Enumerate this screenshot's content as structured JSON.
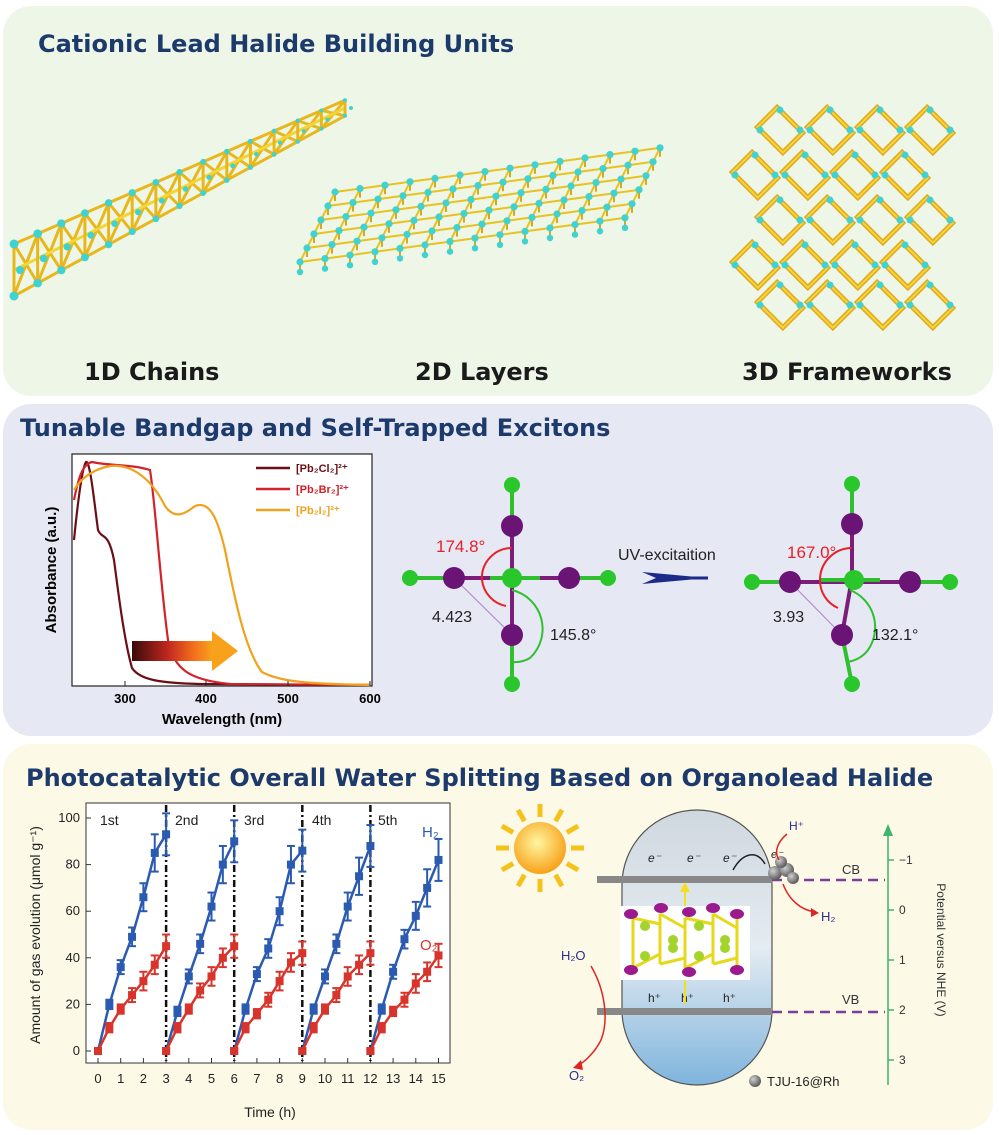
{
  "panel1": {
    "title": "Cationic Lead Halide Building Units",
    "labels": [
      "1D Chains",
      "2D Layers",
      "3D Frameworks"
    ]
  },
  "panel2": {
    "title": "Tunable Bandgap and Self-Trapped Excitons",
    "chart": {
      "xlabel": "Wavelength (nm)",
      "ylabel": "Absorbance (a.u.)",
      "xticks": [
        "300",
        "400",
        "500",
        "600"
      ],
      "legend": [
        {
          "label": "[Pb₂Cl₂]²⁺",
          "color": "#6b0f16"
        },
        {
          "label": "[Pb₂Br₂]²⁺",
          "color": "#d2222a"
        },
        {
          "label": "[Pb₂I₂]²⁺",
          "color": "#f0a21e"
        }
      ]
    },
    "excitation_label": "UV-excitaition",
    "left_structure": {
      "angle1": "174.8°",
      "distance": "4.423",
      "angle2": "145.8°"
    },
    "right_structure": {
      "angle1": "167.0°",
      "distance": "3.93",
      "angle2": "132.1°"
    }
  },
  "panel3": {
    "title": "Photocatalytic Overall Water Splitting Based on Organolead Halide",
    "chart": {
      "xlabel": "Time (h)",
      "ylabel": "Amount of gas evolution (μmol g⁻¹)",
      "xticks": [
        "0",
        "1",
        "2",
        "3",
        "4",
        "5",
        "6",
        "7",
        "8",
        "9",
        "10",
        "11",
        "12",
        "13",
        "14",
        "15"
      ],
      "yticks": [
        "0",
        "20",
        "40",
        "60",
        "80",
        "100"
      ],
      "cycles": [
        "1st",
        "2nd",
        "3rd",
        "4th",
        "5th"
      ],
      "h2_label": "H₂",
      "o2_label": "O₂"
    },
    "diagram": {
      "electrons": [
        "e⁻",
        "e⁻",
        "e⁻"
      ],
      "holes": [
        "h⁺",
        "h⁺",
        "h⁺"
      ],
      "h_plus": "H⁺",
      "h2": "H₂",
      "h2o": "H₂O",
      "o2": "O₂",
      "cb": "CB",
      "vb": "VB",
      "axis_label": "Potential versus NHE (V)",
      "axis_ticks": [
        "−1",
        "0",
        "1",
        "2",
        "3"
      ],
      "catalyst_label": "TJU-16@Rh",
      "e_minus": "e⁻"
    }
  }
}
